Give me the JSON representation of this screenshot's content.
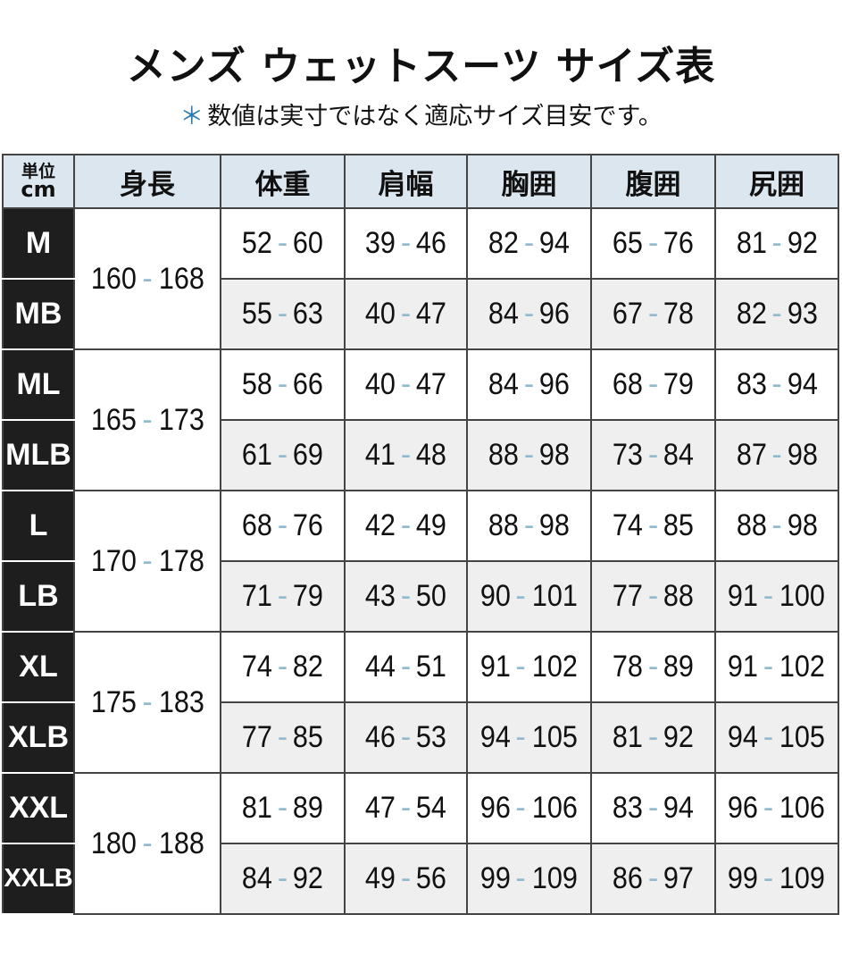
{
  "title": "メンズ ウェットスーツ サイズ表",
  "subtitle": {
    "mark": "＊",
    "text": "数値は実寸ではなく適応サイズ目安です。"
  },
  "header": {
    "unit_line1": "単位",
    "unit_line2": "cm",
    "columns": [
      "身長",
      "体重",
      "肩幅",
      "胸囲",
      "腹囲",
      "尻囲"
    ]
  },
  "colors": {
    "header_bg": "#dce6ee",
    "size_bg": "#1e1e1e",
    "dash": "#8fbad0",
    "alt_row": "#efefef"
  },
  "groups": [
    {
      "height": [
        "160",
        "168"
      ],
      "rows": [
        {
          "size": "M",
          "values": [
            [
              "52",
              "60"
            ],
            [
              "39",
              "46"
            ],
            [
              "82",
              "94"
            ],
            [
              "65",
              "76"
            ],
            [
              "81",
              "92"
            ]
          ]
        },
        {
          "size": "MB",
          "values": [
            [
              "55",
              "63"
            ],
            [
              "40",
              "47"
            ],
            [
              "84",
              "96"
            ],
            [
              "67",
              "78"
            ],
            [
              "82",
              "93"
            ]
          ]
        }
      ]
    },
    {
      "height": [
        "165",
        "173"
      ],
      "rows": [
        {
          "size": "ML",
          "values": [
            [
              "58",
              "66"
            ],
            [
              "40",
              "47"
            ],
            [
              "84",
              "96"
            ],
            [
              "68",
              "79"
            ],
            [
              "83",
              "94"
            ]
          ]
        },
        {
          "size": "MLB",
          "values": [
            [
              "61",
              "69"
            ],
            [
              "41",
              "48"
            ],
            [
              "88",
              "98"
            ],
            [
              "73",
              "84"
            ],
            [
              "87",
              "98"
            ]
          ]
        }
      ]
    },
    {
      "height": [
        "170",
        "178"
      ],
      "rows": [
        {
          "size": "L",
          "values": [
            [
              "68",
              "76"
            ],
            [
              "42",
              "49"
            ],
            [
              "88",
              "98"
            ],
            [
              "74",
              "85"
            ],
            [
              "88",
              "98"
            ]
          ]
        },
        {
          "size": "LB",
          "values": [
            [
              "71",
              "79"
            ],
            [
              "43",
              "50"
            ],
            [
              "90",
              "101"
            ],
            [
              "77",
              "88"
            ],
            [
              "91",
              "100"
            ]
          ]
        }
      ]
    },
    {
      "height": [
        "175",
        "183"
      ],
      "rows": [
        {
          "size": "XL",
          "values": [
            [
              "74",
              "82"
            ],
            [
              "44",
              "51"
            ],
            [
              "91",
              "102"
            ],
            [
              "78",
              "89"
            ],
            [
              "91",
              "102"
            ]
          ]
        },
        {
          "size": "XLB",
          "values": [
            [
              "77",
              "85"
            ],
            [
              "46",
              "53"
            ],
            [
              "94",
              "105"
            ],
            [
              "81",
              "92"
            ],
            [
              "94",
              "105"
            ]
          ]
        }
      ]
    },
    {
      "height": [
        "180",
        "188"
      ],
      "rows": [
        {
          "size": "XXL",
          "values": [
            [
              "81",
              "89"
            ],
            [
              "47",
              "54"
            ],
            [
              "96",
              "106"
            ],
            [
              "83",
              "94"
            ],
            [
              "96",
              "106"
            ]
          ]
        },
        {
          "size": "XXLB",
          "values": [
            [
              "84",
              "92"
            ],
            [
              "49",
              "56"
            ],
            [
              "99",
              "109"
            ],
            [
              "86",
              "97"
            ],
            [
              "99",
              "109"
            ]
          ]
        }
      ]
    }
  ]
}
